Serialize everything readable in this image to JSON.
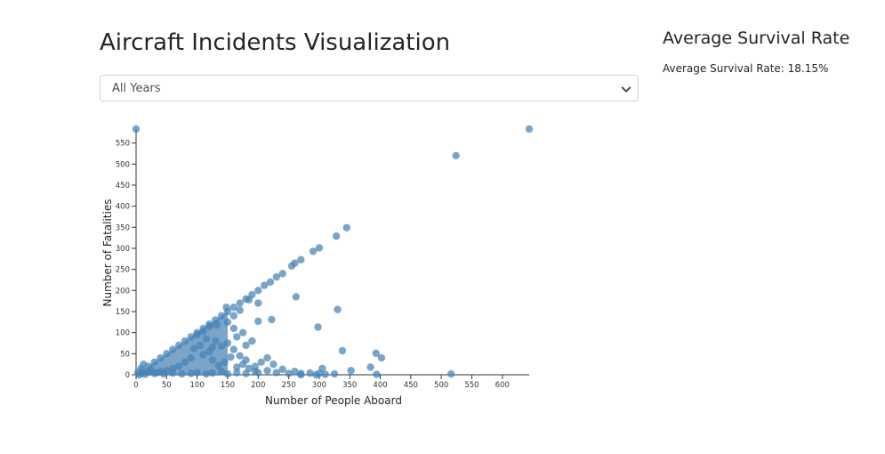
{
  "header": {
    "title": "Aircraft Incidents Visualization"
  },
  "filter": {
    "selected": "All Years"
  },
  "survival": {
    "heading": "Average Survival Rate",
    "text": "Average Survival Rate: 18.15%"
  },
  "colors": {
    "point": "#4682b4",
    "axis": "#333333"
  },
  "icons": {
    "dropdown": "chevron-down-icon"
  },
  "chart_data": {
    "type": "scatter",
    "title": "",
    "xlabel": "Number of People Aboard",
    "ylabel": "Number of Fatalities",
    "xlim": [
      0,
      644
    ],
    "ylim": [
      0,
      583
    ],
    "x_ticks": [
      0,
      50,
      100,
      150,
      200,
      250,
      300,
      350,
      400,
      450,
      500,
      550,
      600
    ],
    "y_ticks": [
      0,
      50,
      100,
      150,
      200,
      250,
      300,
      350,
      400,
      450,
      500,
      550
    ],
    "grid": false,
    "points": [
      {
        "x": 644,
        "y": 583
      },
      {
        "x": 524,
        "y": 520
      },
      {
        "x": 0,
        "y": 583
      },
      {
        "x": 345,
        "y": 349
      },
      {
        "x": 328,
        "y": 329
      },
      {
        "x": 300,
        "y": 301
      },
      {
        "x": 290,
        "y": 293
      },
      {
        "x": 270,
        "y": 273
      },
      {
        "x": 260,
        "y": 265
      },
      {
        "x": 255,
        "y": 258
      },
      {
        "x": 240,
        "y": 240
      },
      {
        "x": 230,
        "y": 232
      },
      {
        "x": 220,
        "y": 220
      },
      {
        "x": 210,
        "y": 212
      },
      {
        "x": 200,
        "y": 200
      },
      {
        "x": 190,
        "y": 190
      },
      {
        "x": 180,
        "y": 180
      },
      {
        "x": 170,
        "y": 170
      },
      {
        "x": 160,
        "y": 160
      },
      {
        "x": 150,
        "y": 150
      },
      {
        "x": 140,
        "y": 140
      },
      {
        "x": 130,
        "y": 130
      },
      {
        "x": 120,
        "y": 120
      },
      {
        "x": 110,
        "y": 110
      },
      {
        "x": 100,
        "y": 100
      },
      {
        "x": 90,
        "y": 90
      },
      {
        "x": 80,
        "y": 80
      },
      {
        "x": 70,
        "y": 70
      },
      {
        "x": 60,
        "y": 60
      },
      {
        "x": 50,
        "y": 50
      },
      {
        "x": 40,
        "y": 40
      },
      {
        "x": 30,
        "y": 30
      },
      {
        "x": 20,
        "y": 20
      },
      {
        "x": 10,
        "y": 10
      },
      {
        "x": 262,
        "y": 185
      },
      {
        "x": 330,
        "y": 155
      },
      {
        "x": 222,
        "y": 131
      },
      {
        "x": 200,
        "y": 127
      },
      {
        "x": 185,
        "y": 178
      },
      {
        "x": 170,
        "y": 153
      },
      {
        "x": 160,
        "y": 140
      },
      {
        "x": 148,
        "y": 160
      },
      {
        "x": 132,
        "y": 118
      },
      {
        "x": 120,
        "y": 115
      },
      {
        "x": 110,
        "y": 103
      },
      {
        "x": 100,
        "y": 95
      },
      {
        "x": 298,
        "y": 113
      },
      {
        "x": 393,
        "y": 51
      },
      {
        "x": 338,
        "y": 57
      },
      {
        "x": 402,
        "y": 40
      },
      {
        "x": 305,
        "y": 15
      },
      {
        "x": 270,
        "y": 3
      },
      {
        "x": 285,
        "y": 4
      },
      {
        "x": 250,
        "y": 3
      },
      {
        "x": 230,
        "y": 5
      },
      {
        "x": 215,
        "y": 10
      },
      {
        "x": 195,
        "y": 8
      },
      {
        "x": 180,
        "y": 3
      },
      {
        "x": 165,
        "y": 5
      },
      {
        "x": 150,
        "y": 2
      },
      {
        "x": 140,
        "y": 8
      },
      {
        "x": 125,
        "y": 4
      },
      {
        "x": 115,
        "y": 2
      },
      {
        "x": 100,
        "y": 5
      },
      {
        "x": 90,
        "y": 3
      },
      {
        "x": 75,
        "y": 2
      },
      {
        "x": 60,
        "y": 4
      },
      {
        "x": 45,
        "y": 2
      },
      {
        "x": 30,
        "y": 3
      },
      {
        "x": 15,
        "y": 1
      },
      {
        "x": 5,
        "y": 0
      },
      {
        "x": 325,
        "y": 2
      },
      {
        "x": 310,
        "y": 1
      },
      {
        "x": 352,
        "y": 10
      },
      {
        "x": 384,
        "y": 18
      },
      {
        "x": 394,
        "y": 1
      },
      {
        "x": 516,
        "y": 2
      },
      {
        "x": 270,
        "y": 0
      },
      {
        "x": 295,
        "y": 0
      },
      {
        "x": 300,
        "y": 3
      },
      {
        "x": 260,
        "y": 8
      },
      {
        "x": 240,
        "y": 13
      },
      {
        "x": 225,
        "y": 25
      },
      {
        "x": 215,
        "y": 40
      },
      {
        "x": 205,
        "y": 30
      },
      {
        "x": 195,
        "y": 20
      },
      {
        "x": 180,
        "y": 35
      },
      {
        "x": 170,
        "y": 45
      },
      {
        "x": 160,
        "y": 60
      },
      {
        "x": 150,
        "y": 75
      },
      {
        "x": 140,
        "y": 68
      },
      {
        "x": 130,
        "y": 80
      },
      {
        "x": 120,
        "y": 55
      },
      {
        "x": 110,
        "y": 48
      },
      {
        "x": 125,
        "y": 35
      },
      {
        "x": 135,
        "y": 22
      },
      {
        "x": 145,
        "y": 30
      },
      {
        "x": 155,
        "y": 42
      },
      {
        "x": 165,
        "y": 18
      },
      {
        "x": 175,
        "y": 25
      },
      {
        "x": 185,
        "y": 15
      },
      {
        "x": 200,
        "y": 5
      },
      {
        "x": 90,
        "y": 40
      },
      {
        "x": 80,
        "y": 30
      },
      {
        "x": 70,
        "y": 20
      },
      {
        "x": 60,
        "y": 15
      },
      {
        "x": 50,
        "y": 10
      },
      {
        "x": 40,
        "y": 8
      },
      {
        "x": 35,
        "y": 5
      },
      {
        "x": 25,
        "y": 12
      },
      {
        "x": 20,
        "y": 6
      },
      {
        "x": 10,
        "y": 3
      },
      {
        "x": 12,
        "y": 25
      },
      {
        "x": 8,
        "y": 15
      },
      {
        "x": 3,
        "y": 5
      },
      {
        "x": 95,
        "y": 62
      },
      {
        "x": 105,
        "y": 70
      },
      {
        "x": 115,
        "y": 85
      },
      {
        "x": 125,
        "y": 65
      },
      {
        "x": 180,
        "y": 70
      },
      {
        "x": 190,
        "y": 80
      },
      {
        "x": 175,
        "y": 100
      },
      {
        "x": 165,
        "y": 90
      },
      {
        "x": 200,
        "y": 170
      },
      {
        "x": 150,
        "y": 125
      },
      {
        "x": 160,
        "y": 110
      }
    ]
  }
}
